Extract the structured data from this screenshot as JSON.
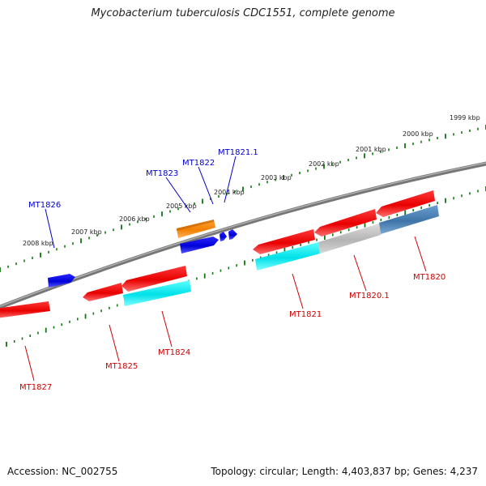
{
  "title": "Mycobacterium tuberculosis CDC1551, complete genome",
  "footer": {
    "accession": "Accession: NC_002755",
    "summary": "Topology: circular; Length: 4,403,837 bp; Genes: 4,237"
  },
  "kbp_labels": [
    "2008 kbp",
    "2007 kbp",
    "2006 kbp",
    "2005 kbp",
    "2004 kbp",
    "2003 kbp",
    "2002 kbp",
    "2001 kbp",
    "2000 kbp",
    "1999 kbp"
  ],
  "genes_plus": [
    {
      "name": "MT1826",
      "color": "#0000ee"
    },
    {
      "name": "MT1823",
      "color": "#0000ee"
    },
    {
      "name": "MT1822",
      "color": "#ff8800"
    },
    {
      "name": "MT1821.1",
      "color": "#0000ee"
    }
  ],
  "genes_minus": [
    {
      "name": "MT1827",
      "color": "#ee0000"
    },
    {
      "name": "MT1825",
      "color": "#ee0000"
    },
    {
      "name": "MT1824",
      "color": "#ee0000"
    },
    {
      "name": "MT1821",
      "color": "#ee0000"
    },
    {
      "name": "MT1820.1",
      "color": "#ee0000"
    },
    {
      "name": "MT1820",
      "color": "#ee0000"
    }
  ],
  "colors": {
    "plus_label": "#0000cc",
    "minus_label": "#cc0000",
    "tick": "#117711",
    "backbone": "#808080",
    "orange": "#ff8800",
    "cyan": "#00e0e8",
    "grey": "#bdbdbd",
    "steel": "#4a7fb0"
  }
}
